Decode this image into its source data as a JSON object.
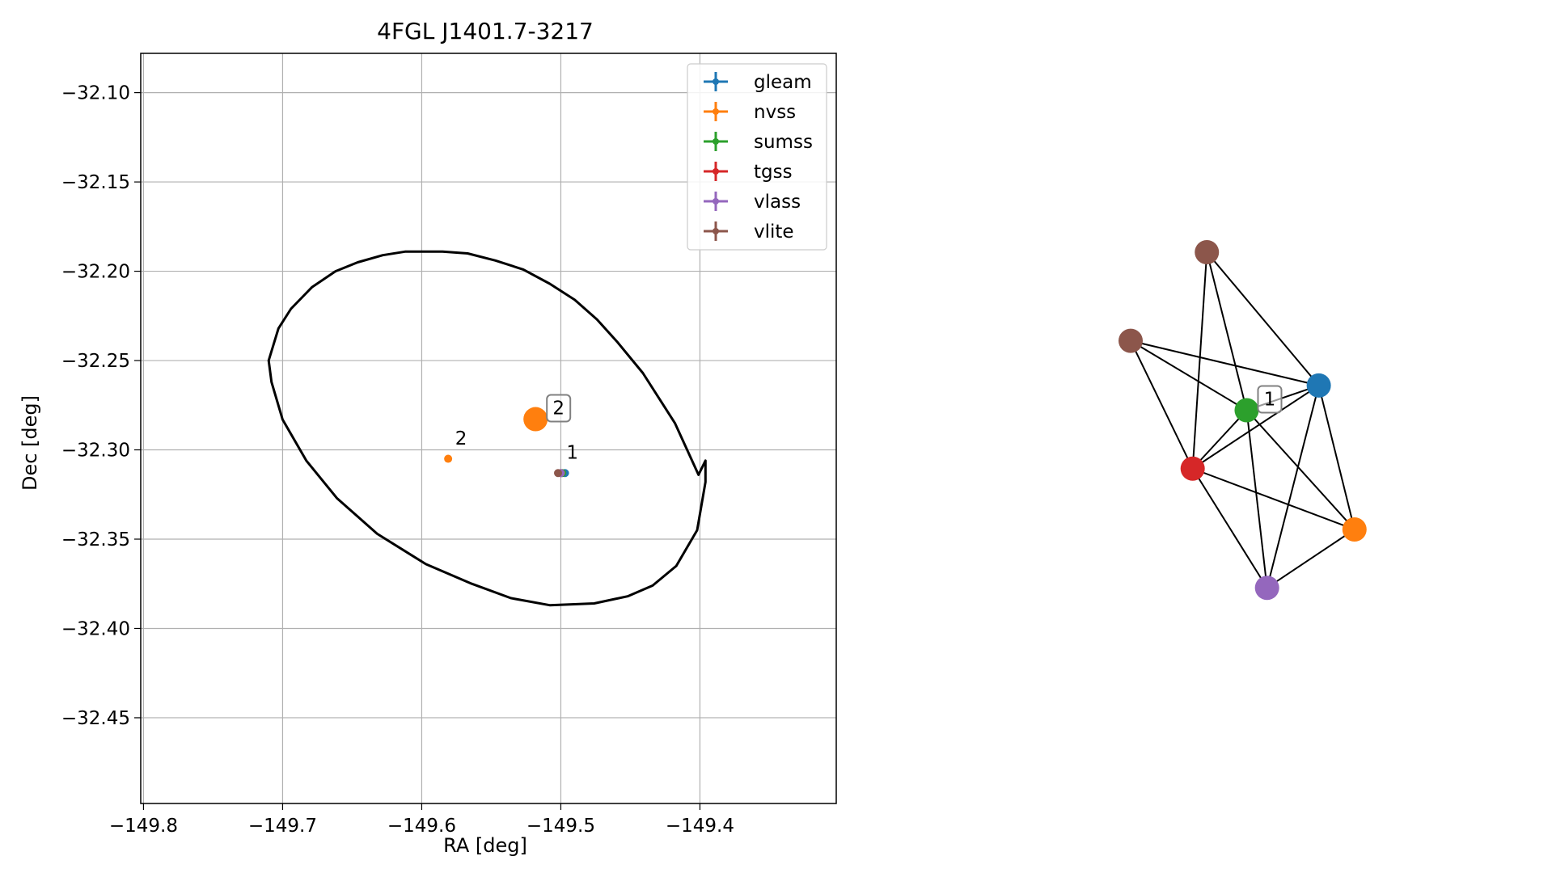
{
  "chart_data": [
    {
      "type": "scatter",
      "title": "4FGL J1401.7-3217",
      "xlabel": "RA [deg]",
      "ylabel": "Dec [deg]",
      "xlim": [
        -149.802,
        -149.302
      ],
      "ylim": [
        -32.498,
        -32.078
      ],
      "grid": true,
      "legend_position": "top-right",
      "x_ticks": [
        -149.8,
        -149.7,
        -149.6,
        -149.5,
        -149.4
      ],
      "x_tick_labels": [
        "−149.8",
        "−149.7",
        "−149.6",
        "−149.5",
        "−149.4"
      ],
      "y_ticks": [
        -32.1,
        -32.15,
        -32.2,
        -32.25,
        -32.3,
        -32.35,
        -32.4,
        -32.45
      ],
      "y_tick_labels": [
        "−32.10",
        "−32.15",
        "−32.20",
        "−32.25",
        "−32.30",
        "−32.35",
        "−32.40",
        "−32.45"
      ],
      "series": [
        {
          "name": "gleam",
          "color": "#1f77b4",
          "x": [
            -149.497
          ],
          "y": [
            -32.313
          ]
        },
        {
          "name": "nvss",
          "color": "#ff7f0e",
          "x": [
            -149.581
          ],
          "y": [
            -32.305
          ]
        },
        {
          "name": "sumss",
          "color": "#2ca02c",
          "x": [
            -149.499
          ],
          "y": [
            -32.313
          ]
        },
        {
          "name": "tgss",
          "color": "#d62728",
          "x": [
            -149.5
          ],
          "y": [
            -32.313
          ]
        },
        {
          "name": "vlass",
          "color": "#9467bd",
          "x": [
            -149.5
          ],
          "y": [
            -32.313
          ]
        },
        {
          "name": "vlite",
          "color": "#8c564b",
          "x": [
            -149.502
          ],
          "y": [
            -32.313
          ]
        }
      ],
      "annotations": [
        {
          "text": "1",
          "x": -149.496,
          "y": -32.305
        },
        {
          "text": "2",
          "x": -149.576,
          "y": -32.297
        }
      ],
      "ellipse": {
        "color": "#000000",
        "points": [
          [
            -149.6,
            -32.189
          ],
          [
            -149.585,
            -32.189
          ],
          [
            -149.567,
            -32.19
          ],
          [
            -149.547,
            -32.194
          ],
          [
            -149.527,
            -32.199
          ],
          [
            -149.508,
            -32.207
          ],
          [
            -149.49,
            -32.216
          ],
          [
            -149.474,
            -32.227
          ],
          [
            -149.459,
            -32.24
          ],
          [
            -149.441,
            -32.257
          ],
          [
            -149.418,
            -32.285
          ],
          [
            -149.401,
            -32.314
          ],
          [
            -149.396,
            -32.306
          ],
          [
            -149.396,
            -32.318
          ],
          [
            -149.402,
            -32.345
          ],
          [
            -149.417,
            -32.365
          ],
          [
            -149.434,
            -32.376
          ],
          [
            -149.452,
            -32.382
          ],
          [
            -149.476,
            -32.386
          ],
          [
            -149.508,
            -32.387
          ],
          [
            -149.536,
            -32.383
          ],
          [
            -149.564,
            -32.375
          ],
          [
            -149.597,
            -32.364
          ],
          [
            -149.632,
            -32.347
          ],
          [
            -149.661,
            -32.327
          ],
          [
            -149.683,
            -32.306
          ],
          [
            -149.7,
            -32.283
          ],
          [
            -149.708,
            -32.262
          ],
          [
            -149.71,
            -32.25
          ],
          [
            -149.703,
            -32.232
          ],
          [
            -149.694,
            -32.221
          ],
          [
            -149.679,
            -32.209
          ],
          [
            -149.662,
            -32.2
          ],
          [
            -149.646,
            -32.195
          ],
          [
            -149.628,
            -32.191
          ],
          [
            -149.612,
            -32.189
          ],
          [
            -149.6,
            -32.189
          ]
        ]
      }
    },
    {
      "type": "network",
      "nodes": [
        {
          "id": "n1",
          "color": "#8c564b",
          "fx": 0.333,
          "fy": 0.0
        },
        {
          "id": "n2",
          "color": "#8c564b",
          "fx": 0.0,
          "fy": 0.258
        },
        {
          "id": "n3",
          "color": "#1f77b4",
          "fx": 0.822,
          "fy": 0.388
        },
        {
          "id": "n4",
          "color": "#2ca02c",
          "fx": 0.507,
          "fy": 0.46
        },
        {
          "id": "n5",
          "color": "#d62728",
          "fx": 0.271,
          "fy": 0.63
        },
        {
          "id": "n6",
          "color": "#ff7f0e",
          "fx": 0.978,
          "fy": 0.807
        },
        {
          "id": "n7",
          "color": "#9467bd",
          "fx": 0.596,
          "fy": 0.977
        },
        {
          "id": "n8",
          "color": "#ff7f0e",
          "fx": -2.6,
          "fy": 0.486
        }
      ],
      "edges": [
        [
          "n1",
          "n3"
        ],
        [
          "n1",
          "n5"
        ],
        [
          "n1",
          "n4"
        ],
        [
          "n2",
          "n3"
        ],
        [
          "n2",
          "n4"
        ],
        [
          "n2",
          "n5"
        ],
        [
          "n3",
          "n4"
        ],
        [
          "n3",
          "n5"
        ],
        [
          "n3",
          "n6"
        ],
        [
          "n3",
          "n7"
        ],
        [
          "n4",
          "n5"
        ],
        [
          "n4",
          "n7"
        ],
        [
          "n4",
          "n6"
        ],
        [
          "n5",
          "n6"
        ],
        [
          "n5",
          "n7"
        ],
        [
          "n6",
          "n7"
        ]
      ],
      "labels": [
        {
          "text": "1",
          "node": "n4"
        },
        {
          "text": "2",
          "node": "n8"
        }
      ]
    }
  ]
}
